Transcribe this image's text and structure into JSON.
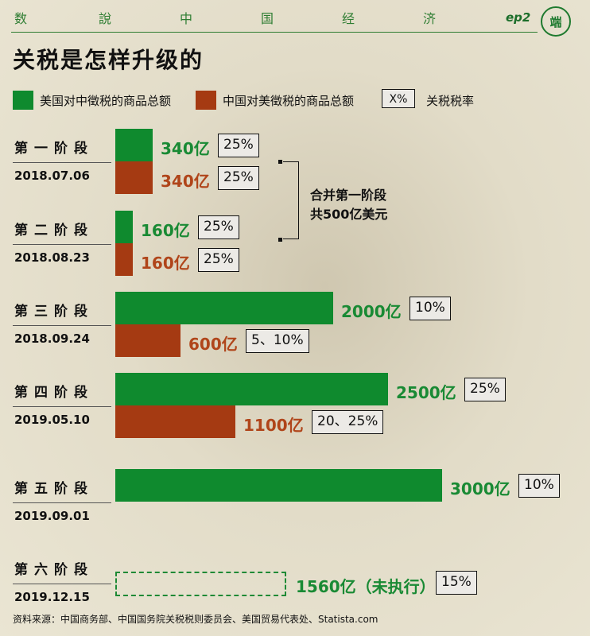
{
  "header": {
    "nav_chars": [
      "数",
      "說",
      "中",
      "国",
      "经",
      "济"
    ],
    "episode": "ep2",
    "logo_text": "端"
  },
  "title": "关税是怎样升级的",
  "legend": {
    "us": "美国对中徵税的商品总额",
    "cn": "中国对美徵税的商品总额",
    "rate_box": "X%",
    "rate_label": "关税税率"
  },
  "colors": {
    "us": "#0f8a2e",
    "cn": "#a53a12",
    "accent": "#2e7d32"
  },
  "chart_data": {
    "type": "bar",
    "orientation": "horizontal",
    "unit": "亿",
    "stages": [
      {
        "name": "第一阶段",
        "date": "2018.07.06",
        "us": {
          "value": 340,
          "label": "340亿",
          "rate": "25%"
        },
        "cn": {
          "value": 340,
          "label": "340亿",
          "rate": "25%"
        }
      },
      {
        "name": "第二阶段",
        "date": "2018.08.23",
        "us": {
          "value": 160,
          "label": "160亿",
          "rate": "25%"
        },
        "cn": {
          "value": 160,
          "label": "160亿",
          "rate": "25%"
        }
      },
      {
        "name": "第三阶段",
        "date": "2018.09.24",
        "us": {
          "value": 2000,
          "label": "2000亿",
          "rate": "10%"
        },
        "cn": {
          "value": 600,
          "label": "600亿",
          "rate": "5、10%"
        }
      },
      {
        "name": "第四阶段",
        "date": "2019.05.10",
        "us": {
          "value": 2500,
          "label": "2500亿",
          "rate": "25%"
        },
        "cn": {
          "value": 1100,
          "label": "1100亿",
          "rate": "20、25%"
        }
      },
      {
        "name": "第五阶段",
        "date": "2019.09.01",
        "us": {
          "value": 3000,
          "label": "3000亿",
          "rate": "10%"
        },
        "cn": null
      },
      {
        "name": "第六阶段",
        "date": "2019.12.15",
        "us": {
          "value": 1560,
          "label": "1560亿（未执行）",
          "rate": "15%",
          "not_executed": true
        },
        "cn": null
      }
    ],
    "annotation": [
      "合并第一阶段",
      "共500亿美元"
    ]
  },
  "source": "资料来源：中国商务部、中国国务院关税税则委员会、美国贸易代表处、Statista.com"
}
